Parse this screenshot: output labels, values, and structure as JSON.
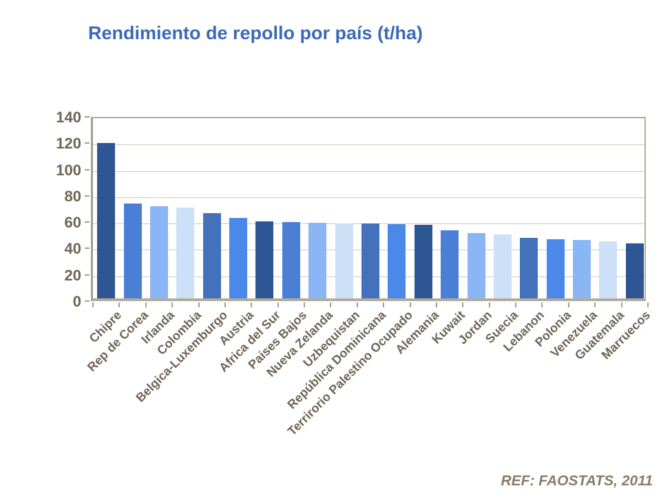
{
  "title": "Rendimiento de repollo por país (t/ha)",
  "reference": "REF: FAOSTATS, 2011",
  "colors": {
    "title": "#3C69B7",
    "axis_text": "#6E6454",
    "axis_line": "#A59D8D",
    "gridline": "#CFC9BD",
    "plot_border": "#B3AC9E",
    "reference_text": "#8A7C66",
    "bar_palette": {
      "dark": "#2F5694",
      "medium": "#4A7FD5",
      "light": "#8AB6F5",
      "pale": "#CCE0F8",
      "steel": "#4371BC",
      "bright": "#4C87EA"
    }
  },
  "chart_data": {
    "type": "bar",
    "title": "Rendimiento de repollo por país (t/ha)",
    "xlabel": "",
    "ylabel": "",
    "ylim": [
      0,
      140
    ],
    "yticks": [
      0,
      20,
      40,
      60,
      80,
      100,
      120,
      140
    ],
    "grid": true,
    "legend": false,
    "categories": [
      "Chipre",
      "Rep de Corea",
      "Irlanda",
      "Colombia",
      "Belgica-Luxemburgo",
      "Austria",
      "Africa del Sur",
      "Paises Bajos",
      "Nueva Zelanda",
      "Uzbequistan",
      "República Dominicana",
      "Terrirorio Palestino Ocupado",
      "Alemania",
      "Kuwait",
      "Jordan",
      "Suecia",
      "Lebanon",
      "Polonia",
      "Venezuela",
      "Guatemala",
      "Marruecos"
    ],
    "values": [
      118,
      72,
      70,
      69,
      65,
      61,
      58.5,
      58,
      57.5,
      57,
      57,
      56.5,
      56,
      51.5,
      49.5,
      48.5,
      46,
      45,
      44.5,
      43.5,
      42
    ],
    "bar_colors": [
      "dark",
      "medium",
      "light",
      "pale",
      "steel",
      "bright",
      "dark",
      "medium",
      "light",
      "pale",
      "steel",
      "bright",
      "dark",
      "medium",
      "light",
      "pale",
      "steel",
      "bright",
      "light",
      "pale",
      "dark"
    ]
  }
}
